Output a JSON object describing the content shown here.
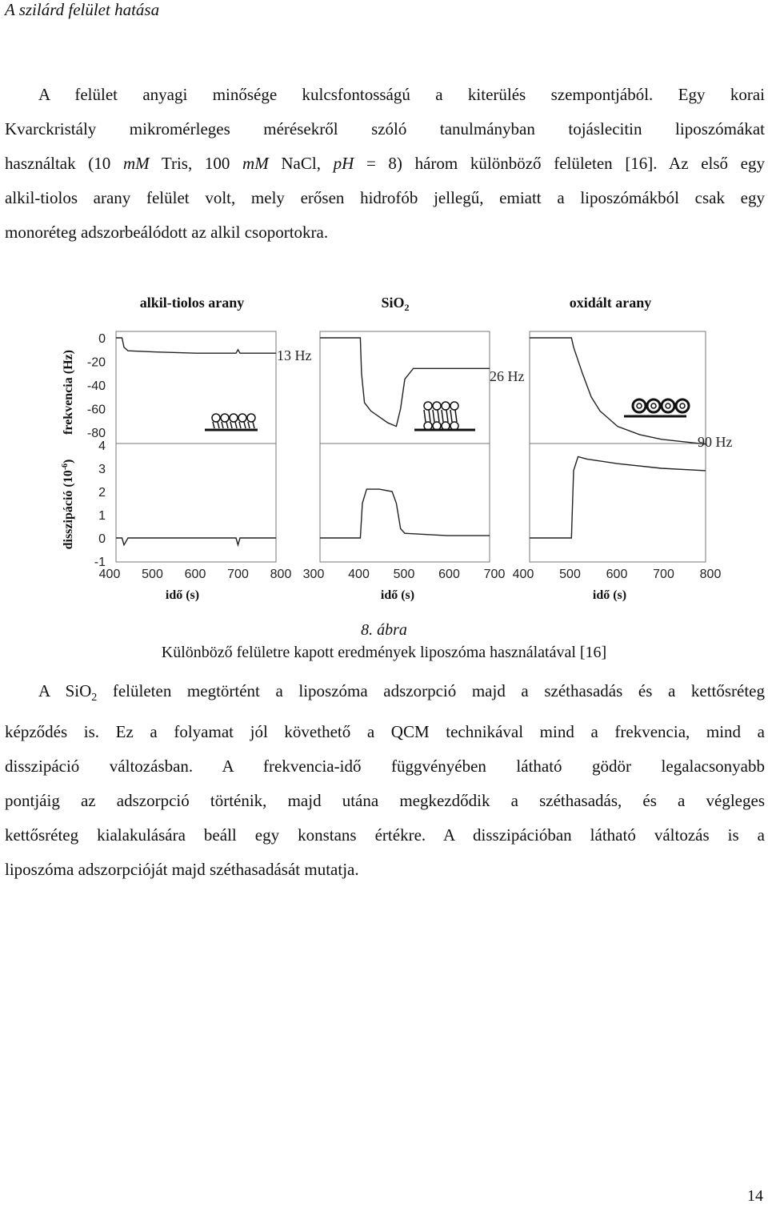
{
  "header": {
    "title": "A szilárd felület hatása"
  },
  "paragraph1": {
    "lines": [
      {
        "parts": [
          {
            "t": "A felület anyagi minősége kulcsfontosságú a kiterülés szempontjából. Egy korai"
          }
        ]
      },
      {
        "parts": [
          {
            "t": "Kvarckristály mikromérleges mérésekről szóló tanulmányban tojáslecitin liposzómákat"
          }
        ]
      },
      {
        "parts": [
          {
            "t": "használtak (10 "
          },
          {
            "t": "mM",
            "i": true
          },
          {
            "t": " Tris, 100 "
          },
          {
            "t": "mM",
            "i": true
          },
          {
            "t": " NaCl, "
          },
          {
            "t": "pH",
            "i": true
          },
          {
            "t": " = 8) három különböző felületen [16]. Az első egy"
          }
        ]
      },
      {
        "parts": [
          {
            "t": "alkil-tiolos arany felület volt, mely erősen hidrofób jellegű, emiatt a liposzómákból csak egy"
          }
        ]
      },
      {
        "parts": [
          {
            "t": "monoréteg adszorbeálódott az alkil csoportokra."
          }
        ]
      }
    ]
  },
  "figure": {
    "panel_titles": [
      "alkil-tiolos arany",
      "SiO",
      "oxidált arany"
    ],
    "sio2_sub": "2",
    "y_label_freq": "frekvencia (Hz)",
    "y_label_diss": "disszipáció (10",
    "y_label_diss_exp": "-6",
    "y_label_diss_end": ")",
    "x_label": "idő (s)",
    "freq_ticks": [
      "0",
      "-20",
      "-40",
      "-60",
      "-80"
    ],
    "diss_ticks": [
      "4",
      "3",
      "2",
      "1",
      "0",
      "-1"
    ],
    "x_ticks": [
      [
        "400",
        "500",
        "600",
        "700",
        "800"
      ],
      [
        "300",
        "400",
        "500",
        "600",
        "700"
      ],
      [
        "400",
        "500",
        "600",
        "700",
        "800"
      ]
    ],
    "annotations": [
      "13 Hz",
      "26 Hz",
      "90 Hz"
    ]
  },
  "chart_data": [
    {
      "type": "line",
      "title": "alkil-tiolos arany",
      "xlabel": "idő (s)",
      "ylabel": "frekvencia (Hz)",
      "xlim": [
        400,
        800
      ],
      "ylim": [
        -90,
        5
      ],
      "series": [
        {
          "x": [
            400,
            415,
            420,
            430,
            500,
            600,
            700,
            705,
            710,
            800
          ],
          "values": [
            0,
            0,
            -8,
            -11,
            -12,
            -13,
            -13,
            -10,
            -13,
            -13
          ]
        }
      ],
      "annotation": "13 Hz"
    },
    {
      "type": "line",
      "title": "alkil-tiolos arany",
      "xlabel": "idő (s)",
      "ylabel": "disszipáció (10-6)",
      "xlim": [
        400,
        800
      ],
      "ylim": [
        -1,
        4
      ],
      "series": [
        {
          "x": [
            400,
            415,
            420,
            430,
            500,
            600,
            700,
            705,
            710,
            800
          ],
          "values": [
            0,
            0,
            -0.3,
            0,
            0,
            0,
            0,
            -0.3,
            0,
            0
          ]
        }
      ]
    },
    {
      "type": "line",
      "title": "SiO2",
      "xlabel": "idő (s)",
      "ylabel": "frekvencia (Hz)",
      "xlim": [
        300,
        700
      ],
      "ylim": [
        -90,
        5
      ],
      "series": [
        {
          "x": [
            300,
            395,
            398,
            405,
            420,
            440,
            460,
            480,
            490,
            500,
            520,
            560,
            600,
            700
          ],
          "values": [
            0,
            0,
            -30,
            -55,
            -62,
            -67,
            -72,
            -75,
            -60,
            -35,
            -26,
            -26,
            -26,
            -26
          ]
        }
      ],
      "annotation": "26 Hz"
    },
    {
      "type": "line",
      "title": "SiO2",
      "xlabel": "idő (s)",
      "ylabel": "disszipáció (10-6)",
      "xlim": [
        300,
        700
      ],
      "ylim": [
        -1,
        4
      ],
      "series": [
        {
          "x": [
            300,
            395,
            400,
            410,
            440,
            470,
            480,
            490,
            500,
            600,
            700
          ],
          "values": [
            0,
            0,
            1.5,
            2.1,
            2.1,
            2.0,
            1.5,
            0.4,
            0.2,
            0.1,
            0.1
          ]
        }
      ]
    },
    {
      "type": "line",
      "title": "oxidált arany",
      "xlabel": "idő (s)",
      "ylabel": "frekvencia (Hz)",
      "xlim": [
        400,
        800
      ],
      "ylim": [
        -90,
        5
      ],
      "series": [
        {
          "x": [
            400,
            495,
            500,
            520,
            540,
            560,
            600,
            650,
            700,
            750,
            800
          ],
          "values": [
            0,
            0,
            -8,
            -30,
            -50,
            -62,
            -75,
            -82,
            -86,
            -88,
            -90
          ]
        }
      ],
      "annotation": "90 Hz"
    },
    {
      "type": "line",
      "title": "oxidált arany",
      "xlabel": "idő (s)",
      "ylabel": "disszipáció (10-6)",
      "xlim": [
        400,
        800
      ],
      "ylim": [
        -1,
        4
      ],
      "series": [
        {
          "x": [
            400,
            495,
            500,
            510,
            530,
            600,
            700,
            800
          ],
          "values": [
            0,
            0,
            2.9,
            3.5,
            3.4,
            3.2,
            3.0,
            2.9
          ]
        }
      ]
    }
  ],
  "caption": {
    "number": "8. ábra",
    "text": "Különböző felületre kapott eredmények liposzóma használatával [16]"
  },
  "paragraph2": {
    "lines": [
      {
        "parts": [
          {
            "t": "A SiO"
          },
          {
            "t": "2",
            "sub": true
          },
          {
            "t": " felületen megtörtént a liposzóma adszorpció majd a széthasadás és a kettősréteg"
          }
        ]
      },
      {
        "parts": [
          {
            "t": "képződés is. Ez a folyamat jól követhető a QCM technikával mind a frekvencia, mind a"
          }
        ]
      },
      {
        "parts": [
          {
            "t": "disszipáció változásban. A frekvencia-idő függvényében látható gödör legalacsonyabb"
          }
        ]
      },
      {
        "parts": [
          {
            "t": "pontjáig az adszorpció történik, majd utána megkezdődik a széthasadás, és a végleges"
          }
        ]
      },
      {
        "parts": [
          {
            "t": "kettősréteg kialakulására beáll egy konstans értékre. A disszipációban látható változás is a"
          }
        ]
      },
      {
        "parts": [
          {
            "t": "liposzóma adszorpcióját majd széthasadását mutatja."
          }
        ]
      }
    ]
  },
  "page_number": "14"
}
